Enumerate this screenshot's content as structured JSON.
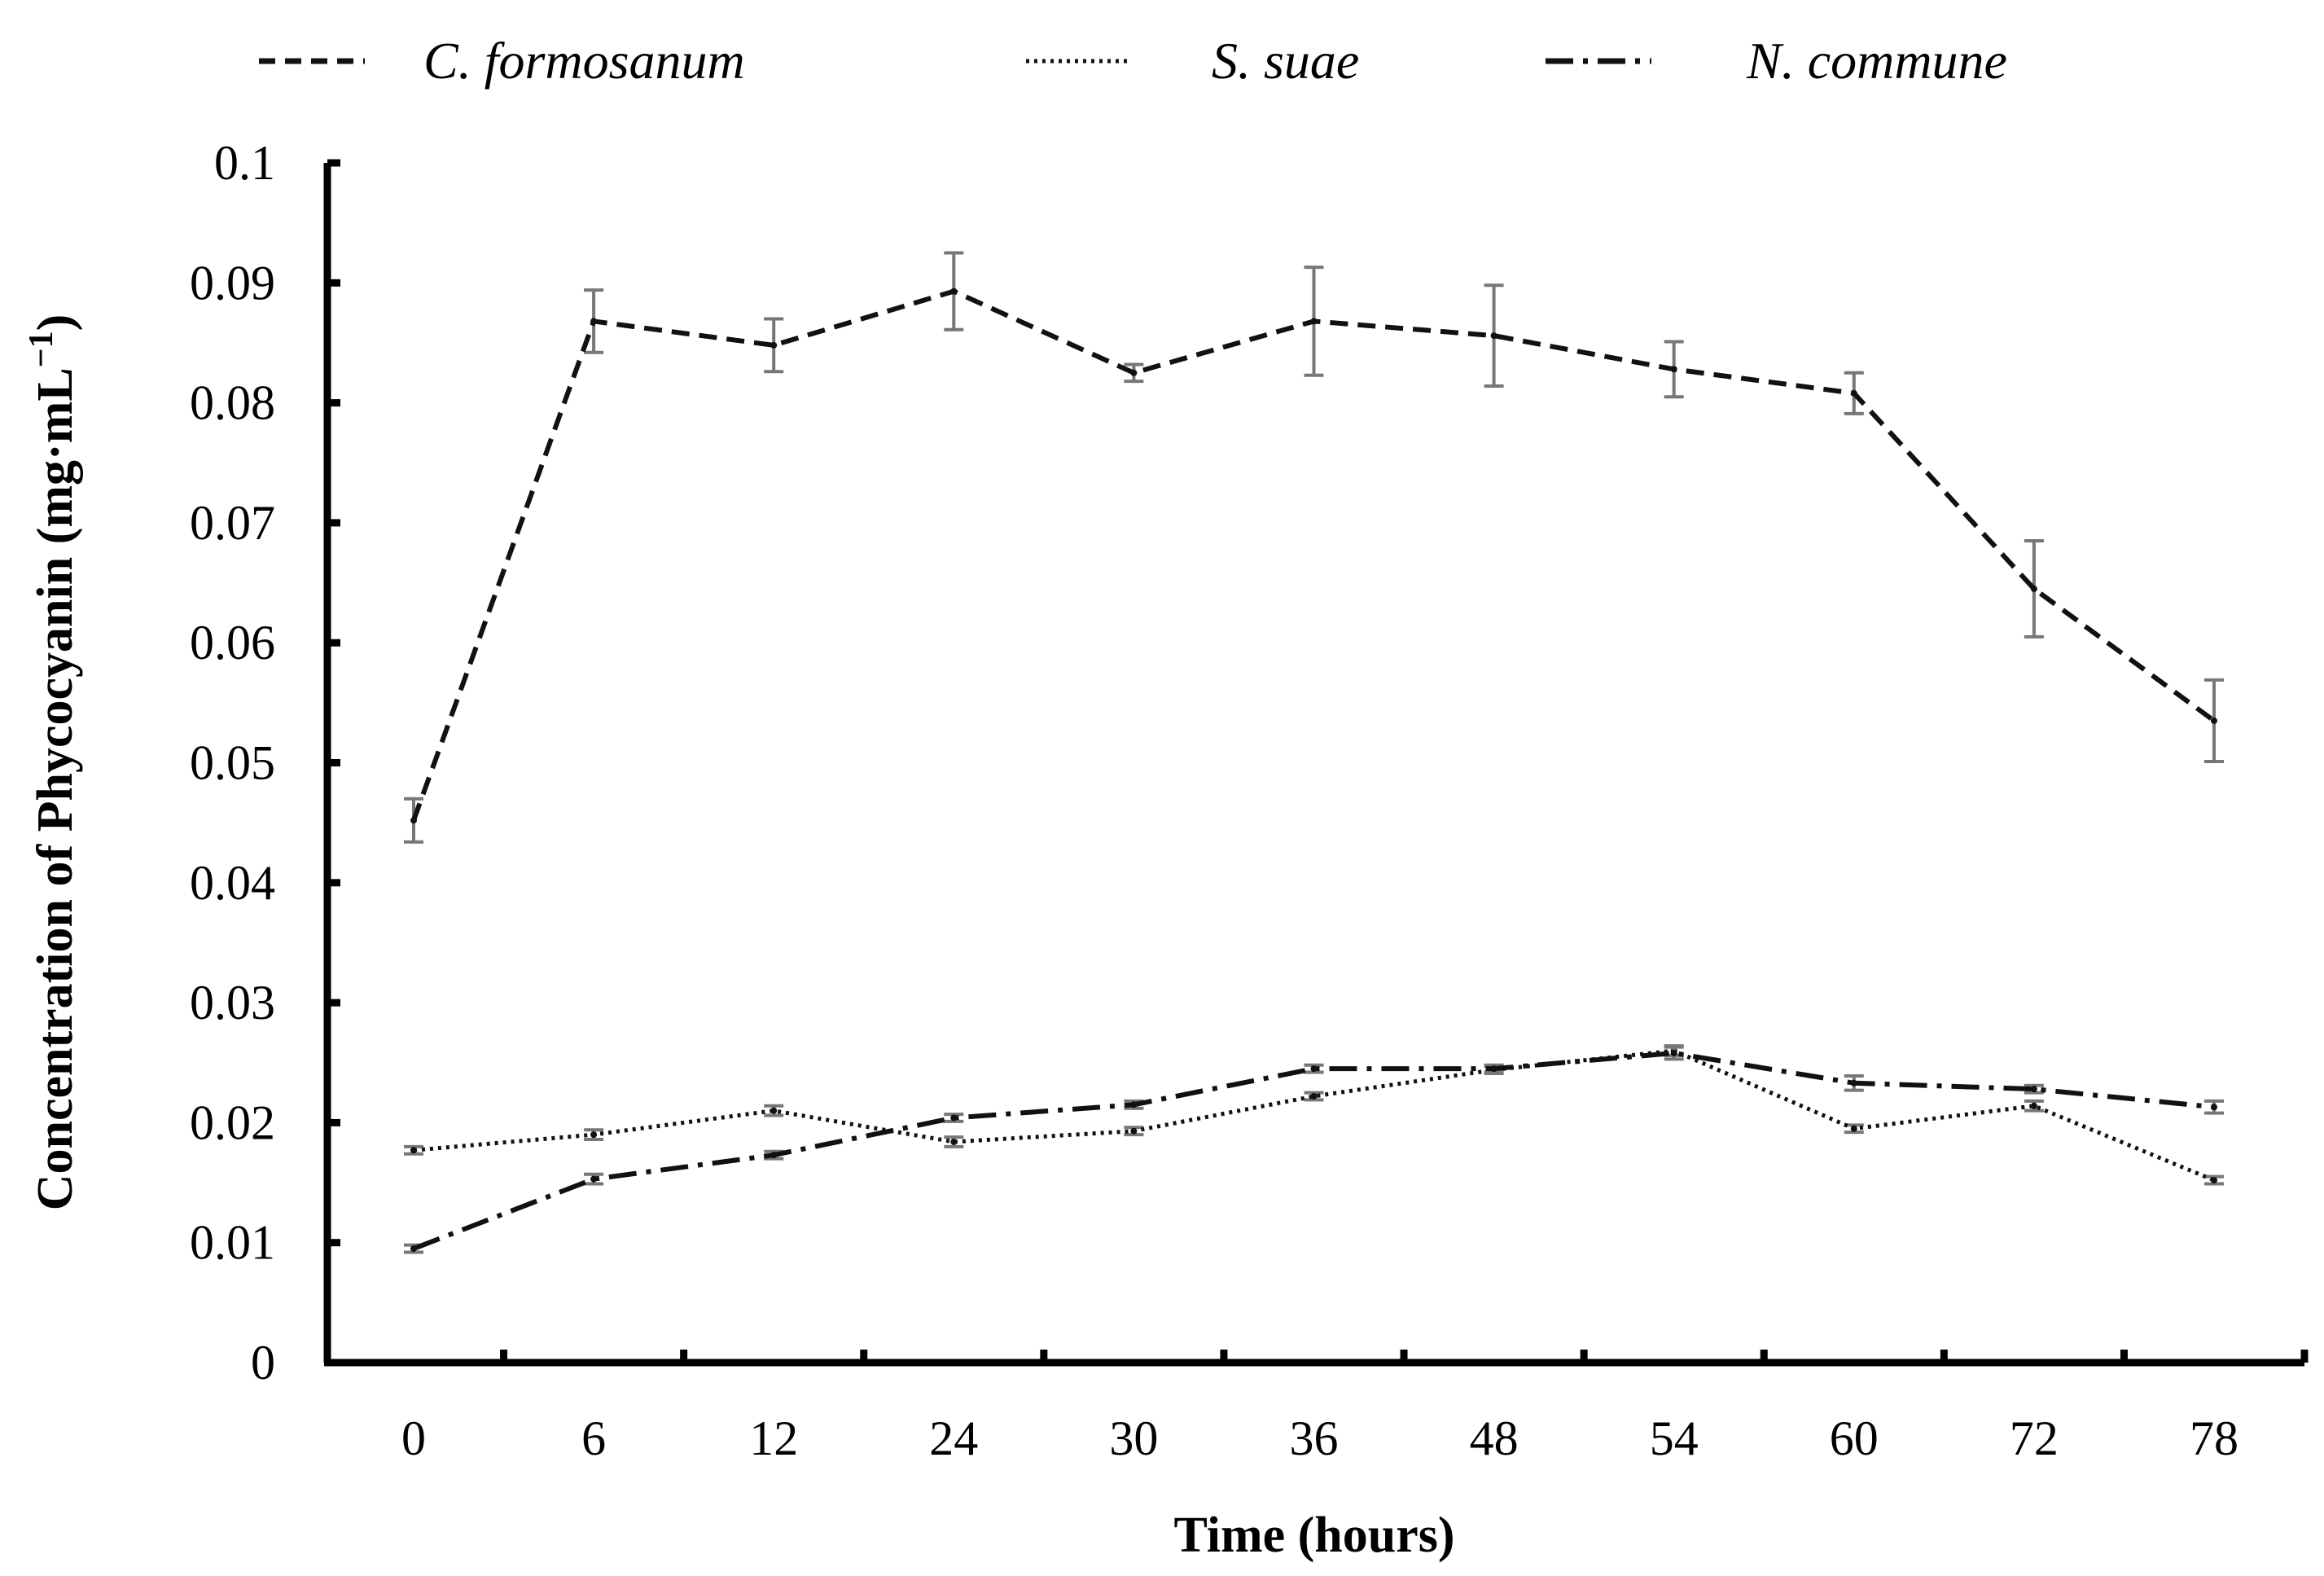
{
  "chart_data": {
    "type": "line",
    "title": "",
    "xlabel": "Time (hours)",
    "ylabel": "Concentration of Phycocyanin (mg·mL",
    "ylabel_sup": "−1",
    "ylabel_close": ")",
    "categories": [
      "0",
      "6",
      "12",
      "24",
      "30",
      "36",
      "48",
      "54",
      "60",
      "72",
      "78"
    ],
    "ylim": [
      0,
      0.1
    ],
    "yticks": [
      0,
      0.01,
      0.02,
      0.03,
      0.04,
      0.05,
      0.06,
      0.07,
      0.08,
      0.09,
      0.1
    ],
    "ytick_labels": [
      "0",
      "0.01",
      "0.02",
      "0.03",
      "0.04",
      "0.05",
      "0.06",
      "0.07",
      "0.08",
      "0.09",
      "0.1"
    ],
    "grid": false,
    "legend_position": "top",
    "series": [
      {
        "name": "C. formosanum",
        "style": "dashed",
        "values": [
          0.0452,
          0.0868,
          0.0848,
          0.0893,
          0.0825,
          0.0868,
          0.0856,
          0.0828,
          0.0808,
          0.0645,
          0.0535
        ],
        "errors": [
          0.0018,
          0.0026,
          0.0022,
          0.0032,
          0.0007,
          0.0045,
          0.0042,
          0.0023,
          0.0017,
          0.004,
          0.0034
        ]
      },
      {
        "name": "S. suae",
        "style": "dotted",
        "values": [
          0.0177,
          0.019,
          0.021,
          0.0184,
          0.0193,
          0.0222,
          0.0244,
          0.026,
          0.0195,
          0.0214,
          0.0152
        ],
        "errors": [
          0.0003,
          0.0004,
          0.0004,
          0.0004,
          0.0003,
          0.0003,
          0.0003,
          0.0004,
          0.0003,
          0.0004,
          0.0003
        ]
      },
      {
        "name": "N. commune",
        "style": "dash-dot",
        "values": [
          0.0095,
          0.0153,
          0.0173,
          0.0204,
          0.0215,
          0.0245,
          0.0245,
          0.0258,
          0.0233,
          0.0228,
          0.0213
        ],
        "errors": [
          0.0003,
          0.0004,
          0.0003,
          0.0003,
          0.0003,
          0.0003,
          0.0003,
          0.0005,
          0.0006,
          0.0003,
          0.0005
        ]
      }
    ]
  },
  "colors": {
    "line": "#111111",
    "error_bar": "#777777",
    "axis": "#000000"
  }
}
